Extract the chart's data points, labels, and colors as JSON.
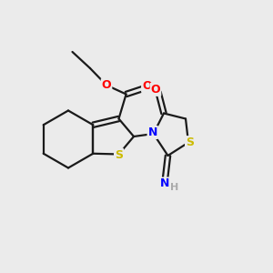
{
  "background_color": "#ebebeb",
  "bond_color": "#1a1a1a",
  "atom_colors": {
    "O": "#ff0000",
    "N": "#0000ff",
    "S": "#ccbb00",
    "C": "#1a1a1a",
    "H": "#aaaaaa"
  },
  "figsize": [
    3.0,
    3.0
  ],
  "dpi": 100
}
